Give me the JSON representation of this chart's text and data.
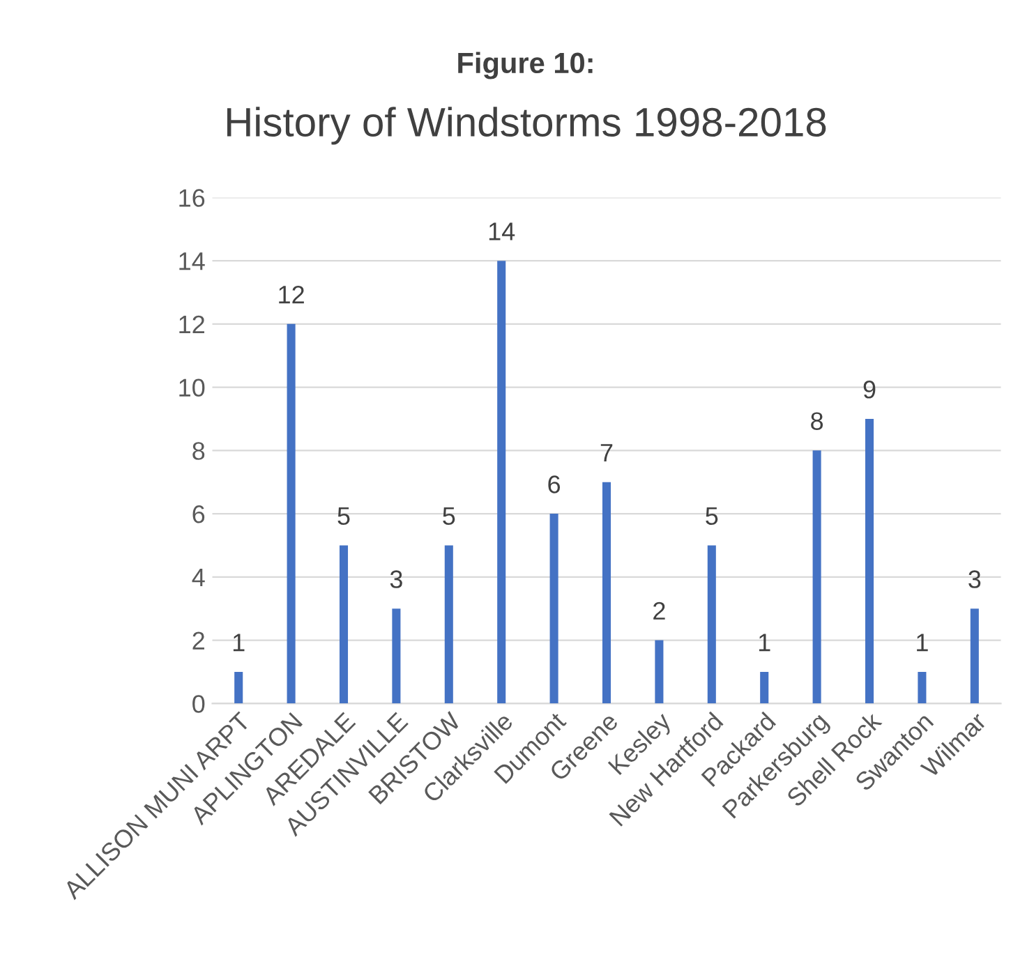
{
  "chart_data": {
    "type": "bar",
    "title": "Figure 10:",
    "subtitle": "History of Windstorms 1998-2018",
    "categories": [
      "ALLISON MUNI ARPT",
      "APLINGTON",
      "AREDALE",
      "AUSTINVILLE",
      "BRISTOW",
      "Clarksville",
      "Dumont",
      "Greene",
      "Kesley",
      "New Hartford",
      "Packard",
      "Parkersburg",
      "Shell Rock",
      "Swanton",
      "Wilmar"
    ],
    "values": [
      1,
      12,
      5,
      3,
      5,
      14,
      6,
      7,
      2,
      5,
      1,
      8,
      9,
      1,
      3
    ],
    "color": "#4472c4",
    "ylim": [
      0,
      16
    ],
    "yticks": [
      0,
      2,
      4,
      6,
      8,
      10,
      12,
      14,
      16
    ],
    "grid": "y",
    "data_labels": true
  }
}
